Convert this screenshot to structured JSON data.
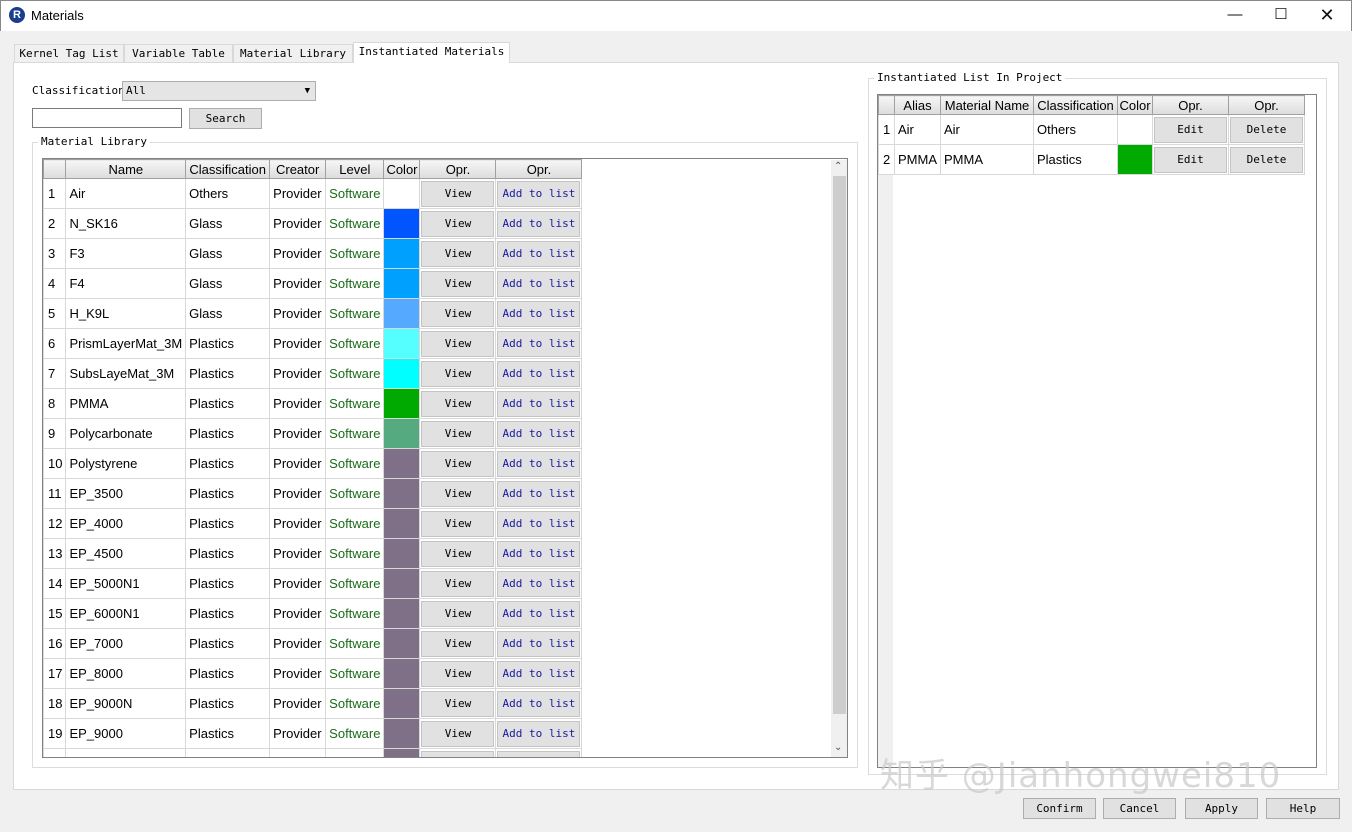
{
  "window": {
    "title": "Materials",
    "icon": "R"
  },
  "tabs": [
    {
      "label": "Kernel Tag List"
    },
    {
      "label": "Variable Table"
    },
    {
      "label": "Material Library"
    },
    {
      "label": "Instantiated Materials",
      "selected": true
    }
  ],
  "filter": {
    "classification_label": "Classification",
    "classification_value": "All",
    "search_value": "",
    "search_button": "Search"
  },
  "library": {
    "title": "Material Library",
    "columns": [
      "",
      "Name",
      "Classification",
      "Creator",
      "Level",
      "Color",
      "Opr.",
      "Opr."
    ],
    "view_label": "View",
    "add_label": "Add to list",
    "rows": [
      {
        "n": "1",
        "name": "Air",
        "cls": "Others",
        "creator": "Provider",
        "level": "Software",
        "color": "#ffffff"
      },
      {
        "n": "2",
        "name": "N_SK16",
        "cls": "Glass",
        "creator": "Provider",
        "level": "Software",
        "color": "#0055ff"
      },
      {
        "n": "3",
        "name": "F3",
        "cls": "Glass",
        "creator": "Provider",
        "level": "Software",
        "color": "#00a0ff"
      },
      {
        "n": "4",
        "name": "F4",
        "cls": "Glass",
        "creator": "Provider",
        "level": "Software",
        "color": "#00a0ff"
      },
      {
        "n": "5",
        "name": "H_K9L",
        "cls": "Glass",
        "creator": "Provider",
        "level": "Software",
        "color": "#55aaff"
      },
      {
        "n": "6",
        "name": "PrismLayerMat_3M",
        "cls": "Plastics",
        "creator": "Provider",
        "level": "Software",
        "color": "#55ffff"
      },
      {
        "n": "7",
        "name": "SubsLayeMat_3M",
        "cls": "Plastics",
        "creator": "Provider",
        "level": "Software",
        "color": "#00ffff"
      },
      {
        "n": "8",
        "name": "PMMA",
        "cls": "Plastics",
        "creator": "Provider",
        "level": "Software",
        "color": "#00aa00"
      },
      {
        "n": "9",
        "name": "Polycarbonate",
        "cls": "Plastics",
        "creator": "Provider",
        "level": "Software",
        "color": "#55aa7f"
      },
      {
        "n": "10",
        "name": "Polystyrene",
        "cls": "Plastics",
        "creator": "Provider",
        "level": "Software",
        "color": "#7f7087"
      },
      {
        "n": "11",
        "name": "EP_3500",
        "cls": "Plastics",
        "creator": "Provider",
        "level": "Software",
        "color": "#7f7087"
      },
      {
        "n": "12",
        "name": "EP_4000",
        "cls": "Plastics",
        "creator": "Provider",
        "level": "Software",
        "color": "#7f7087"
      },
      {
        "n": "13",
        "name": "EP_4500",
        "cls": "Plastics",
        "creator": "Provider",
        "level": "Software",
        "color": "#7f7087"
      },
      {
        "n": "14",
        "name": "EP_5000N1",
        "cls": "Plastics",
        "creator": "Provider",
        "level": "Software",
        "color": "#7f7087"
      },
      {
        "n": "15",
        "name": "EP_6000N1",
        "cls": "Plastics",
        "creator": "Provider",
        "level": "Software",
        "color": "#7f7087"
      },
      {
        "n": "16",
        "name": "EP_7000",
        "cls": "Plastics",
        "creator": "Provider",
        "level": "Software",
        "color": "#7f7087"
      },
      {
        "n": "17",
        "name": "EP_8000",
        "cls": "Plastics",
        "creator": "Provider",
        "level": "Software",
        "color": "#7f7087"
      },
      {
        "n": "18",
        "name": "EP_9000N",
        "cls": "Plastics",
        "creator": "Provider",
        "level": "Software",
        "color": "#7f7087"
      },
      {
        "n": "19",
        "name": "EP_9000",
        "cls": "Plastics",
        "creator": "Provider",
        "level": "Software",
        "color": "#7f7087"
      },
      {
        "n": "",
        "name": "",
        "cls": "",
        "creator": "",
        "level": "",
        "color": "#7f7087",
        "partial": true
      }
    ]
  },
  "instantiated": {
    "title": "Instantiated List In Project",
    "columns": [
      "",
      "Alias",
      "Material Name",
      "Classification",
      "Color",
      "Opr.",
      "Opr."
    ],
    "edit_label": "Edit",
    "delete_label": "Delete",
    "rows": [
      {
        "n": "1",
        "alias": "Air",
        "name": "Air",
        "cls": "Others",
        "color": "#ffffff"
      },
      {
        "n": "2",
        "alias": "PMMA",
        "name": "PMMA",
        "cls": "Plastics",
        "color": "#00aa00"
      }
    ]
  },
  "footer": {
    "confirm": "Confirm",
    "cancel": "Cancel",
    "apply": "Apply",
    "help": "Help"
  },
  "watermark": "知乎 @Jianhongwei810"
}
